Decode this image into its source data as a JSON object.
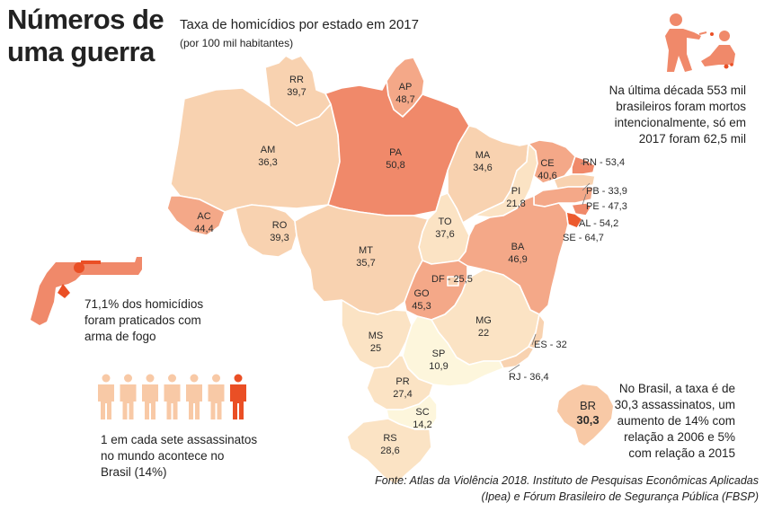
{
  "header": {
    "title_line1": "Números de",
    "title_line2": "uma guerra",
    "subtitle": "Taxa de homicídios por estado em 2017",
    "subtitle_unit": "(por 100 mil habitantes)"
  },
  "notes": {
    "decade_line1": "Na última década 553 mil",
    "decade_line2": "brasileiros foram mortos",
    "decade_line3": "intencionalmente, só em",
    "decade_line4": "2017 foram 62,5 mil",
    "firearm_line1": "71,1% dos homicídios",
    "firearm_line2": "foram praticados com",
    "firearm_line3": "arma de fogo",
    "world_line1": "1 em cada sete assassinatos",
    "world_line2": "no mundo acontece no",
    "world_line3": "Brasil (14%)",
    "brazil_line1": "No Brasil, a taxa é de",
    "brazil_line2": "30,3 assassinatos, um",
    "brazil_line3": "aumento de 14% com",
    "brazil_line4": "relação a 2006 e 5%",
    "brazil_line5": "com relação a 2015"
  },
  "source": {
    "line1": "Fonte: Atlas da Violência 2018. Instituto de Pesquisas Econômicas Aplicadas",
    "line2": "(Ipea) e Fórum Brasileiro de Segurança Pública (FBSP)"
  },
  "icons": {
    "pictogram": "person-icon",
    "gun": "revolver-icon",
    "crime": "attack-icon",
    "map": "brazil-map-icon"
  },
  "colors": {
    "low": "#fdf6dc",
    "mid_low": "#fbe3c4",
    "mid": "#f8d2b0",
    "mid_high": "#f4a888",
    "high": "#f0896a",
    "accent": "#ec5a2e",
    "person_light": "#f8c9a6",
    "person_highlight": "#ea4f25"
  },
  "pictogram": {
    "total": 7,
    "highlighted": 1
  },
  "national": {
    "code": "BR",
    "rate": "30,3"
  },
  "states": {
    "RR": {
      "code": "RR",
      "rate": "39,7"
    },
    "AP": {
      "code": "AP",
      "rate": "48,7"
    },
    "AM": {
      "code": "AM",
      "rate": "36,3"
    },
    "PA": {
      "code": "PA",
      "rate": "50,8"
    },
    "MA": {
      "code": "MA",
      "rate": "34,6"
    },
    "CE": {
      "code": "CE",
      "rate": "40,6"
    },
    "PI": {
      "code": "PI",
      "rate": "21,8"
    },
    "AC": {
      "code": "AC",
      "rate": "44,4"
    },
    "RO": {
      "code": "RO",
      "rate": "39,3"
    },
    "TO": {
      "code": "TO",
      "rate": "37,6"
    },
    "MT": {
      "code": "MT",
      "rate": "35,7"
    },
    "BA": {
      "code": "BA",
      "rate": "46,9"
    },
    "GO": {
      "code": "GO",
      "rate": "45,3"
    },
    "MS": {
      "code": "MS",
      "rate": "25"
    },
    "MG": {
      "code": "MG",
      "rate": "22"
    },
    "SP": {
      "code": "SP",
      "rate": "10,9"
    },
    "PR": {
      "code": "PR",
      "rate": "27,4"
    },
    "SC": {
      "code": "SC",
      "rate": "14,2"
    },
    "RS": {
      "code": "RS",
      "rate": "28,6"
    }
  },
  "external_labels": {
    "RN": "RN - 53,4",
    "PB": "PB - 33,9",
    "PE": "PE - 47,3",
    "AL": "AL - 54,2",
    "SE": "SE - 64,7",
    "DF": "DF - 25,5",
    "ES": "ES - 32",
    "RJ": "RJ - 36,4"
  }
}
